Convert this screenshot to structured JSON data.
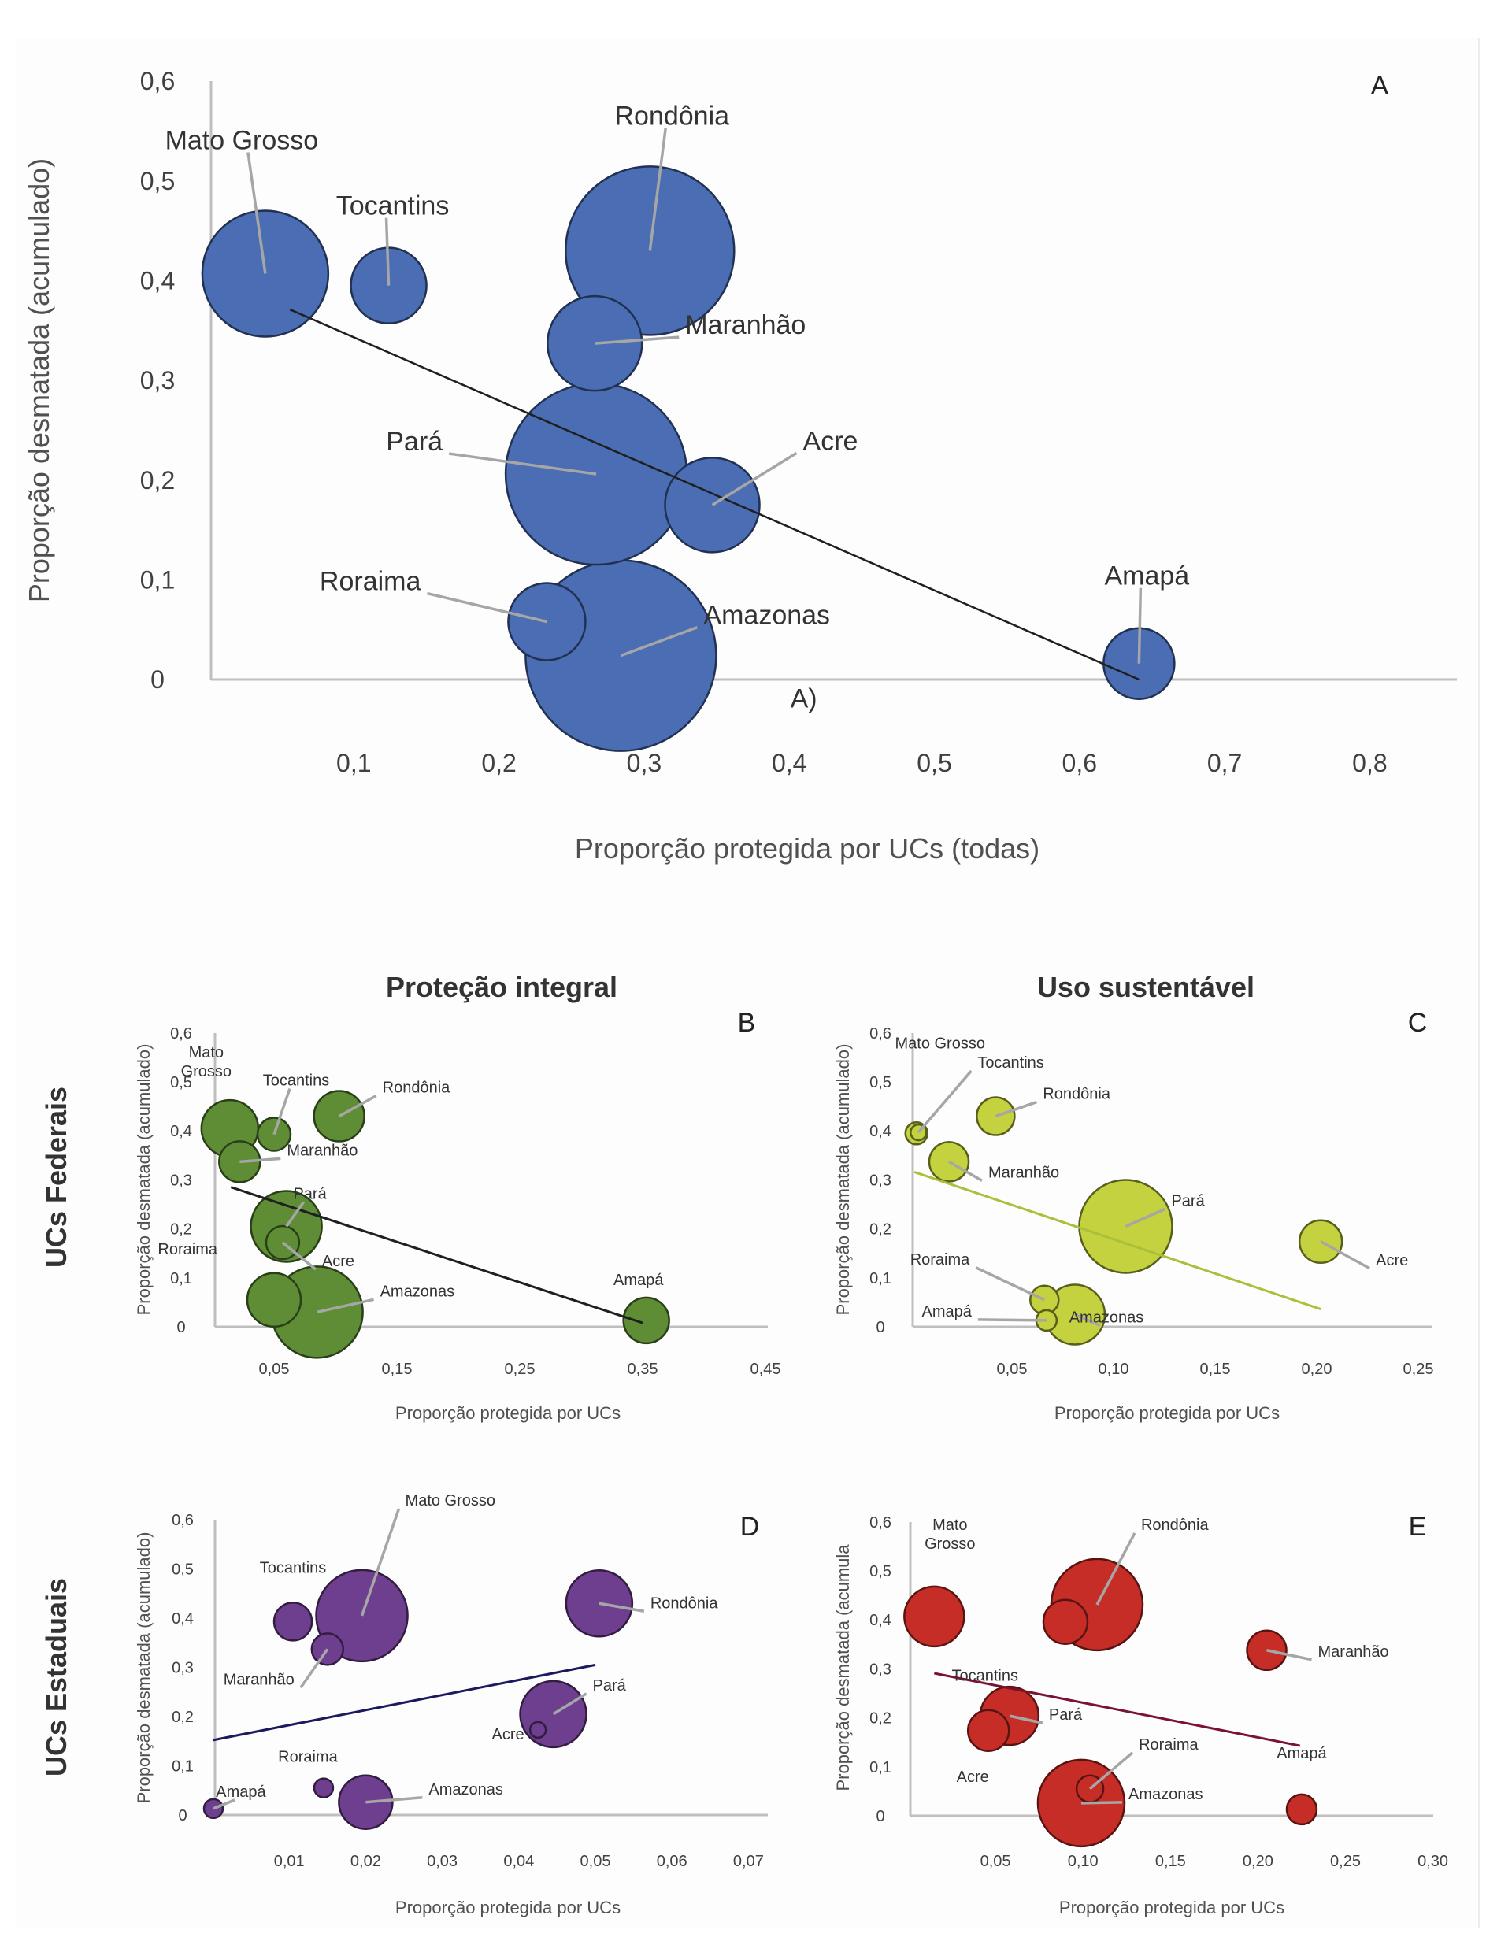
{
  "colors": {
    "A": "#4a6db3",
    "B": "#5e8d36",
    "C": "#c3d23e",
    "D": "#6e3f8f",
    "E": "#c62d27",
    "leader": "#a6a6a6",
    "axis": "#bfbfbf"
  },
  "section_titles": {
    "left": "Proteção integral",
    "right": "Uso sustentável"
  },
  "row_titles": {
    "top": "UCs Federais",
    "bottom": "UCs Estaduais"
  },
  "chart_data": [
    {
      "id": "A",
      "type": "scatter",
      "subtype": "bubble",
      "panel_letter": "A",
      "annotation": "A)",
      "title": "",
      "xlabel": "Proporção protegida por UCs (todas)",
      "ylabel": "Proporção desmatada (acumulado)",
      "xlim": [
        0,
        0.85
      ],
      "ylim": [
        0,
        0.6
      ],
      "xticks": [
        "0,1",
        "0,2",
        "0,3",
        "0,4",
        "0,5",
        "0,6",
        "0,7",
        "0,8"
      ],
      "xtick_values": [
        0.1,
        0.2,
        0.3,
        0.4,
        0.5,
        0.6,
        0.7,
        0.8
      ],
      "yticks": [
        "0",
        "0,1",
        "0,2",
        "0,3",
        "0,4",
        "0,5",
        "0,6"
      ],
      "ytick_values": [
        0,
        0.1,
        0.2,
        0.3,
        0.4,
        0.5,
        0.6
      ],
      "grid": false,
      "trendline": {
        "x": [
          0.056,
          0.641
        ],
        "y": [
          0.371,
          0.0
        ],
        "color": "#1f1f1f"
      },
      "points": [
        {
          "label": "Mato Grosso",
          "x": 0.039,
          "y": 0.407,
          "size": 80
        },
        {
          "label": "Tocantins",
          "x": 0.124,
          "y": 0.395,
          "size": 48
        },
        {
          "label": "Rondônia",
          "x": 0.304,
          "y": 0.43,
          "size": 107
        },
        {
          "label": "Maranhão",
          "x": 0.266,
          "y": 0.337,
          "size": 60
        },
        {
          "label": "Pará",
          "x": 0.267,
          "y": 0.206,
          "size": 115
        },
        {
          "label": "Acre",
          "x": 0.347,
          "y": 0.175,
          "size": 60
        },
        {
          "label": "Roraima",
          "x": 0.233,
          "y": 0.058,
          "size": 49
        },
        {
          "label": "Amazonas",
          "x": 0.284,
          "y": 0.024,
          "size": 121
        },
        {
          "label": "Amapá",
          "x": 0.641,
          "y": 0.016,
          "size": 45
        }
      ]
    },
    {
      "id": "B",
      "type": "scatter",
      "subtype": "bubble",
      "panel_letter": "B",
      "title": "Proteção integral",
      "xlabel": "Proporção protegida por UCs",
      "ylabel": "Proporção desmatada (acumulado)",
      "xlim": [
        0,
        0.45
      ],
      "ylim": [
        0,
        0.6
      ],
      "xticks": [
        "0,05",
        "0,15",
        "0,25",
        "0,35",
        "0,45"
      ],
      "xtick_values": [
        0.05,
        0.15,
        0.25,
        0.35,
        0.45
      ],
      "yticks": [
        "0",
        "0,1",
        "0,2",
        "0,3",
        "0,4",
        "0,5",
        "0,6"
      ],
      "ytick_values": [
        0,
        0.1,
        0.2,
        0.3,
        0.4,
        0.5,
        0.6
      ],
      "grid": false,
      "trendline": {
        "x": [
          0.015,
          0.35
        ],
        "y": [
          0.285,
          0.008
        ],
        "color": "#1f1f1f"
      },
      "points": [
        {
          "label": "Mato Grosso",
          "x": 0.014,
          "y": 0.405,
          "size": 36
        },
        {
          "label": "Tocantins",
          "x": 0.05,
          "y": 0.393,
          "size": 21
        },
        {
          "label": "Rondônia",
          "x": 0.103,
          "y": 0.43,
          "size": 32
        },
        {
          "label": "Maranhão",
          "x": 0.022,
          "y": 0.337,
          "size": 26
        },
        {
          "label": "Pará",
          "x": 0.06,
          "y": 0.205,
          "size": 45
        },
        {
          "label": "Acre",
          "x": 0.057,
          "y": 0.172,
          "size": 21
        },
        {
          "label": "Roraima",
          "x": 0.05,
          "y": 0.055,
          "size": 34
        },
        {
          "label": "Amazonas",
          "x": 0.085,
          "y": 0.03,
          "size": 58
        },
        {
          "label": "Amapá",
          "x": 0.353,
          "y": 0.013,
          "size": 29
        }
      ]
    },
    {
      "id": "C",
      "type": "scatter",
      "subtype": "bubble",
      "panel_letter": "C",
      "title": "Uso sustentável",
      "xlabel": "Proporção protegida por UCs",
      "ylabel": "Proporção desmatada (acumulado)",
      "xlim": [
        0,
        0.25
      ],
      "ylim": [
        0,
        0.6
      ],
      "xticks": [
        "0,05",
        "0,10",
        "0,15",
        "0,20",
        "0,25"
      ],
      "xtick_values": [
        0.05,
        0.1,
        0.15,
        0.2,
        0.25
      ],
      "yticks": [
        "0",
        "0,1",
        "0,2",
        "0,3",
        "0,4",
        "0,5",
        "0,6"
      ],
      "ytick_values": [
        0,
        0.1,
        0.2,
        0.3,
        0.4,
        0.5,
        0.6
      ],
      "grid": false,
      "trendline": {
        "x": [
          0.002,
          0.202
        ],
        "y": [
          0.316,
          0.036
        ],
        "color": "#a8c03a"
      },
      "points": [
        {
          "label": "Mato Grosso",
          "x": 0.003,
          "y": 0.395,
          "size": 14
        },
        {
          "label": "Tocantins",
          "x": 0.004,
          "y": 0.397,
          "size": 10
        },
        {
          "label": "Rondônia",
          "x": 0.042,
          "y": 0.43,
          "size": 24
        },
        {
          "label": "Maranhão",
          "x": 0.019,
          "y": 0.337,
          "size": 25
        },
        {
          "label": "Pará",
          "x": 0.106,
          "y": 0.205,
          "size": 59
        },
        {
          "label": "Acre",
          "x": 0.202,
          "y": 0.174,
          "size": 27
        },
        {
          "label": "Roraima",
          "x": 0.066,
          "y": 0.055,
          "size": 18
        },
        {
          "label": "Amazonas",
          "x": 0.081,
          "y": 0.025,
          "size": 38
        },
        {
          "label": "Amapá",
          "x": 0.067,
          "y": 0.013,
          "size": 13
        }
      ]
    },
    {
      "id": "D",
      "type": "scatter",
      "subtype": "bubble",
      "panel_letter": "D",
      "title": "",
      "xlabel": "Proporção protegida por UCs",
      "ylabel": "Proporção desmatada (acumulado)",
      "xlim": [
        0,
        0.07
      ],
      "ylim": [
        0,
        0.6
      ],
      "xticks": [
        "0,01",
        "0,02",
        "0,03",
        "0,04",
        "0,05",
        "0,06",
        "0,07"
      ],
      "xtick_values": [
        0.01,
        0.02,
        0.03,
        0.04,
        0.05,
        0.06,
        0.07
      ],
      "yticks": [
        "0",
        "0,1",
        "0,2",
        "0,3",
        "0,4",
        "0,5",
        "0,6"
      ],
      "ytick_values": [
        0,
        0.1,
        0.2,
        0.3,
        0.4,
        0.5,
        0.6
      ],
      "grid": false,
      "trendline": {
        "x": [
          0.0,
          0.05
        ],
        "y": [
          0.152,
          0.305
        ],
        "color": "#1c1a5c"
      },
      "points": [
        {
          "label": "Mato Grosso",
          "x": 0.0195,
          "y": 0.405,
          "size": 58
        },
        {
          "label": "Tocantins",
          "x": 0.0105,
          "y": 0.393,
          "size": 24
        },
        {
          "label": "Rondônia",
          "x": 0.0505,
          "y": 0.43,
          "size": 42
        },
        {
          "label": "Maranhão",
          "x": 0.015,
          "y": 0.337,
          "size": 20
        },
        {
          "label": "Pará",
          "x": 0.0445,
          "y": 0.205,
          "size": 42
        },
        {
          "label": "Acre",
          "x": 0.0425,
          "y": 0.173,
          "size": 10
        },
        {
          "label": "Roraima",
          "x": 0.0145,
          "y": 0.055,
          "size": 12
        },
        {
          "label": "Amazonas",
          "x": 0.02,
          "y": 0.026,
          "size": 34
        },
        {
          "label": "Amapá",
          "x": 0.0001,
          "y": 0.013,
          "size": 12
        }
      ]
    },
    {
      "id": "E",
      "type": "scatter",
      "subtype": "bubble",
      "panel_letter": "E",
      "title": "",
      "xlabel": "Proporção protegida por UCs",
      "ylabel": "Proporção desmatada (acumula",
      "xlim": [
        0,
        0.3
      ],
      "ylim": [
        0,
        0.6
      ],
      "xticks": [
        "0,05",
        "0,10",
        "0,15",
        "0,20",
        "0,25",
        "0,30"
      ],
      "xtick_values": [
        0.05,
        0.1,
        0.15,
        0.2,
        0.25,
        0.3
      ],
      "yticks": [
        "0",
        "0,1",
        "0,2",
        "0,3",
        "0,4",
        "0,5",
        "0,6"
      ],
      "ytick_values": [
        0,
        0.1,
        0.2,
        0.3,
        0.4,
        0.5,
        0.6
      ],
      "grid": false,
      "trendline": {
        "x": [
          0.015,
          0.224
        ],
        "y": [
          0.291,
          0.143
        ],
        "color": "#7a1230"
      },
      "points": [
        {
          "label": "Mato Grosso",
          "x": 0.015,
          "y": 0.407,
          "size": 38
        },
        {
          "label": "Tocantins",
          "x": 0.09,
          "y": 0.396,
          "size": 28
        },
        {
          "label": "Rondônia",
          "x": 0.108,
          "y": 0.431,
          "size": 58
        },
        {
          "label": "Maranhão",
          "x": 0.205,
          "y": 0.338,
          "size": 25
        },
        {
          "label": "Pará",
          "x": 0.058,
          "y": 0.204,
          "size": 37
        },
        {
          "label": "Acre",
          "x": 0.046,
          "y": 0.174,
          "size": 26
        },
        {
          "label": "Roraima",
          "x": 0.104,
          "y": 0.055,
          "size": 17
        },
        {
          "label": "Amazonas",
          "x": 0.099,
          "y": 0.026,
          "size": 55
        },
        {
          "label": "Amapá",
          "x": 0.225,
          "y": 0.013,
          "size": 19
        }
      ]
    }
  ]
}
